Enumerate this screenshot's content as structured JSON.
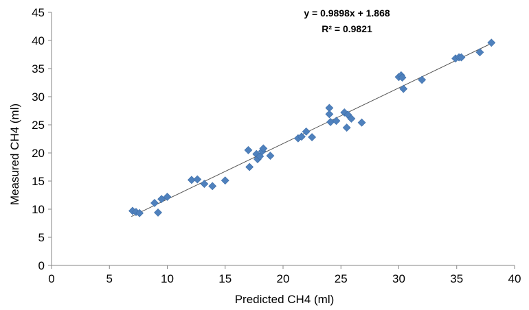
{
  "chart_data": {
    "type": "scatter",
    "title": "",
    "xlabel": "Predicted CH4 (ml)",
    "ylabel": "Measured CH4 (ml)",
    "xlim": [
      0,
      40
    ],
    "ylim": [
      0,
      45
    ],
    "xticks": [
      0,
      5,
      10,
      15,
      20,
      25,
      30,
      35,
      40
    ],
    "yticks": [
      0,
      5,
      10,
      15,
      20,
      25,
      30,
      35,
      40,
      45
    ],
    "grid": false,
    "legend": "none",
    "marker": "diamond",
    "marker_color": "#4F81BD",
    "trendline_color": "#555555",
    "trendline": {
      "slope": 0.9898,
      "intercept": 1.868,
      "x_range": [
        6.9,
        38.0
      ],
      "equation_label": "y = 0.9898x + 1.868",
      "r2_label": "R² = 0.9821"
    },
    "series": [
      {
        "points": [
          [
            7.0,
            9.7
          ],
          [
            7.3,
            9.5
          ],
          [
            7.6,
            9.3
          ],
          [
            8.9,
            11.1
          ],
          [
            9.2,
            9.4
          ],
          [
            9.5,
            11.8
          ],
          [
            10.0,
            12.2
          ],
          [
            12.1,
            15.2
          ],
          [
            12.6,
            15.3
          ],
          [
            13.2,
            14.5
          ],
          [
            13.9,
            14.1
          ],
          [
            15.0,
            15.1
          ],
          [
            17.0,
            20.5
          ],
          [
            17.1,
            17.5
          ],
          [
            17.7,
            19.8
          ],
          [
            17.8,
            18.9
          ],
          [
            18.0,
            19.4
          ],
          [
            18.2,
            20.3
          ],
          [
            18.3,
            20.8
          ],
          [
            18.9,
            19.5
          ],
          [
            21.3,
            22.6
          ],
          [
            21.6,
            22.9
          ],
          [
            22.0,
            23.8
          ],
          [
            22.5,
            22.8
          ],
          [
            24.0,
            28.0
          ],
          [
            24.0,
            26.9
          ],
          [
            24.1,
            25.5
          ],
          [
            24.6,
            25.7
          ],
          [
            25.3,
            27.2
          ],
          [
            25.5,
            24.5
          ],
          [
            25.6,
            26.8
          ],
          [
            25.9,
            26.1
          ],
          [
            26.8,
            25.4
          ],
          [
            30.0,
            33.5
          ],
          [
            30.2,
            33.8
          ],
          [
            30.3,
            33.4
          ],
          [
            30.4,
            31.4
          ],
          [
            32.0,
            33.0
          ],
          [
            34.9,
            36.8
          ],
          [
            35.2,
            37.0
          ],
          [
            35.4,
            37.0
          ],
          [
            37.0,
            37.9
          ],
          [
            38.0,
            39.6
          ]
        ]
      }
    ]
  }
}
